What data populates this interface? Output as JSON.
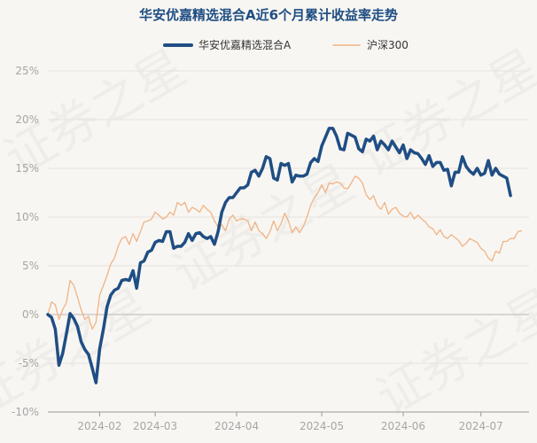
{
  "chart_data": {
    "type": "line",
    "title": "华安优嘉精选混合A近6个月累计收益率走势",
    "watermark": "证券之星",
    "ylim": [
      -10,
      25
    ],
    "yticks": [
      -10,
      -5,
      0,
      5,
      10,
      15,
      20,
      25
    ],
    "ytick_labels": [
      "-10%",
      "-5%",
      "0%",
      "5%",
      "10%",
      "15%",
      "20%",
      "25%"
    ],
    "xlim": [
      0,
      130
    ],
    "xticks": [
      {
        "label": "2024-02",
        "pos": 14
      },
      {
        "label": "2024-03",
        "pos": 29
      },
      {
        "label": "2024-04",
        "pos": 51
      },
      {
        "label": "2024-05",
        "pos": 74
      },
      {
        "label": "2024-06",
        "pos": 96
      },
      {
        "label": "2024-07",
        "pos": 117
      }
    ],
    "legend_position": "top-center",
    "series": [
      {
        "name": "华安优嘉精选混合A",
        "color": "#1f4e84",
        "values": [
          0,
          -0.3,
          -1.5,
          -5.2,
          -4.0,
          -2.0,
          0.1,
          -0.4,
          -1.2,
          -2.8,
          -3.6,
          -4.1,
          -5.5,
          -7.0,
          -3.5,
          -1.5,
          0.8,
          2.0,
          2.5,
          2.7,
          3.5,
          3.6,
          3.5,
          4.5,
          2.7,
          5.3,
          5.5,
          6.4,
          6.6,
          7.4,
          7.6,
          7.5,
          8.5,
          8.5,
          6.8,
          7.0,
          7.0,
          7.4,
          8.3,
          7.6,
          8.3,
          8.4,
          8.0,
          7.8,
          8.0,
          7.2,
          8.5,
          10.5,
          11.5,
          12.0,
          12.0,
          12.5,
          13.0,
          13.0,
          13.3,
          14.6,
          14.8,
          14.2,
          15.0,
          16.2,
          16.0,
          14.0,
          13.8,
          15.5,
          15.3,
          15.5,
          13.6,
          14.3,
          14.2,
          14.2,
          14.4,
          15.6,
          16.0,
          15.7,
          17.3,
          18.2,
          19.1,
          19.1,
          18.3,
          17.0,
          16.9,
          18.6,
          18.4,
          18.2,
          17.0,
          16.7,
          18.0,
          17.8,
          18.3,
          16.9,
          17.8,
          17.4,
          16.9,
          17.8,
          17.2,
          16.6,
          17.4,
          16.0,
          16.9,
          16.6,
          16.5,
          16.0,
          15.4,
          16.3,
          15.2,
          15.6,
          15.6,
          14.8,
          14.9,
          13.2,
          14.6,
          14.6,
          16.2,
          15.2,
          14.7,
          14.4,
          15.0,
          14.3,
          14.5,
          15.8,
          14.3,
          15.0,
          14.4,
          14.2,
          14.0,
          12.2
        ],
        "width": 3.5
      },
      {
        "name": "沪深300",
        "color": "#f0b385",
        "values": [
          0,
          1.3,
          1.0,
          -0.5,
          0.5,
          1.2,
          3.5,
          3.0,
          1.8,
          0.5,
          -0.5,
          -0.2,
          -1.5,
          -0.8,
          2.0,
          3.0,
          4.0,
          5.2,
          5.8,
          7.0,
          7.8,
          8.0,
          7.2,
          8.3,
          7.5,
          8.5,
          9.5,
          9.6,
          9.8,
          10.5,
          10.2,
          9.8,
          10.0,
          10.5,
          10.2,
          11.5,
          11.2,
          11.5,
          10.5,
          11.0,
          10.8,
          10.5,
          11.2,
          10.8,
          10.5,
          9.6,
          9.0,
          9.2,
          8.6,
          9.8,
          10.2,
          9.6,
          9.8,
          9.8,
          9.6,
          8.6,
          9.5,
          8.6,
          8.3,
          7.8,
          8.5,
          9.6,
          8.6,
          9.3,
          10.4,
          9.6,
          8.4,
          9.0,
          8.4,
          9.0,
          10.0,
          11.2,
          12.0,
          12.5,
          13.3,
          12.5,
          13.5,
          13.4,
          13.6,
          13.5,
          13.0,
          12.9,
          13.5,
          14.2,
          14.0,
          13.5,
          12.3,
          11.8,
          12.2,
          11.2,
          10.8,
          11.5,
          10.3,
          10.8,
          11.0,
          10.4,
          10.1,
          10.0,
          10.5,
          9.8,
          10.2,
          9.8,
          9.5,
          9.0,
          8.8,
          8.2,
          8.7,
          8.0,
          7.8,
          8.2,
          7.9,
          7.6,
          7.0,
          7.3,
          7.8,
          7.6,
          7.4,
          6.8,
          6.5,
          5.8,
          5.5,
          6.5,
          6.3,
          7.5,
          7.5,
          7.8,
          7.8,
          8.5,
          8.6
        ],
        "width": 1.3
      }
    ]
  }
}
